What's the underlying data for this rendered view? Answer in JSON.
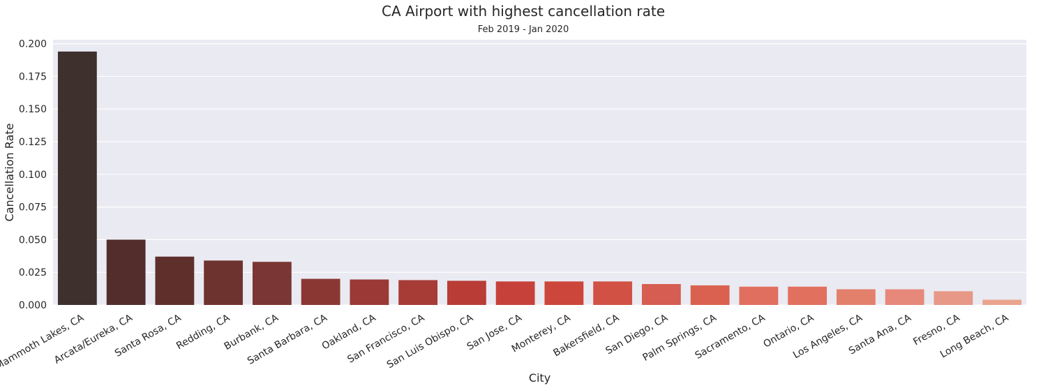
{
  "chart_data": {
    "type": "bar",
    "title": "CA Airport with highest cancellation rate",
    "subtitle": "Feb 2019 - Jan 2020",
    "xlabel": "City",
    "ylabel": "Cancellation Rate",
    "ylim": [
      0,
      0.2
    ],
    "yticks": [
      "0.000",
      "0.025",
      "0.050",
      "0.075",
      "0.100",
      "0.125",
      "0.150",
      "0.175",
      "0.200"
    ],
    "grid": true,
    "categories": [
      "Mammoth Lakes, CA",
      "Arcata/Eureka, CA",
      "Santa Rosa, CA",
      "Redding, CA",
      "Burbank, CA",
      "Santa Barbara, CA",
      "Oakland, CA",
      "San Francisco, CA",
      "San Luis Obispo, CA",
      "San Jose, CA",
      "Monterey, CA",
      "Bakersfield, CA",
      "San Diego, CA",
      "Palm Springs, CA",
      "Sacramento, CA",
      "Ontario, CA",
      "Los Angeles, CA",
      "Santa Ana, CA",
      "Fresno, CA",
      "Long Beach, CA"
    ],
    "values": [
      0.194,
      0.05,
      0.037,
      0.034,
      0.033,
      0.02,
      0.0195,
      0.019,
      0.0185,
      0.018,
      0.018,
      0.018,
      0.016,
      0.015,
      0.014,
      0.014,
      0.012,
      0.012,
      0.0105,
      0.004
    ],
    "colors": [
      "#3e302d",
      "#522d2c",
      "#5f2f2c",
      "#6d332f",
      "#7a3634",
      "#8a3734",
      "#9b3937",
      "#a73b36",
      "#b93c36",
      "#c7413b",
      "#cd463b",
      "#d15244",
      "#d65d51",
      "#da6150",
      "#e06f5f",
      "#e2705e",
      "#e2806c",
      "#e6897b",
      "#e79886",
      "#eaa48d"
    ],
    "plot_background": "#eaeaf2",
    "gridline_color": "#ffffff",
    "text_color": "#262626"
  }
}
